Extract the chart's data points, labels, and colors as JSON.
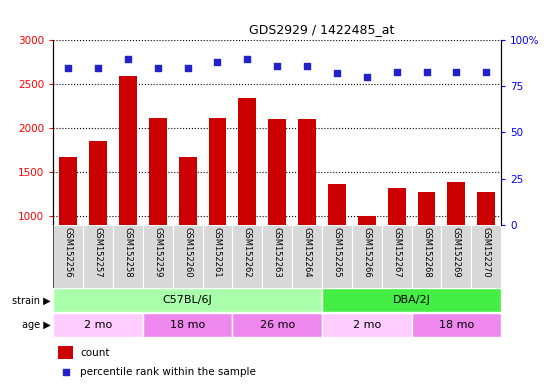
{
  "title": "GDS2929 / 1422485_at",
  "samples": [
    "GSM152256",
    "GSM152257",
    "GSM152258",
    "GSM152259",
    "GSM152260",
    "GSM152261",
    "GSM152262",
    "GSM152263",
    "GSM152264",
    "GSM152265",
    "GSM152266",
    "GSM152267",
    "GSM152268",
    "GSM152269",
    "GSM152270"
  ],
  "counts": [
    1670,
    1850,
    2590,
    2110,
    1670,
    2110,
    2340,
    2100,
    2100,
    1360,
    1000,
    1320,
    1270,
    1390,
    1270
  ],
  "percentiles": [
    85,
    85,
    90,
    85,
    85,
    88,
    90,
    86,
    86,
    82,
    80,
    83,
    83,
    83,
    83
  ],
  "bar_color": "#cc0000",
  "dot_color": "#2222cc",
  "ylim_left": [
    900,
    3000
  ],
  "ylim_right": [
    0,
    100
  ],
  "yticks_left": [
    1000,
    1500,
    2000,
    2500,
    3000
  ],
  "yticks_right": [
    0,
    25,
    50,
    75,
    100
  ],
  "strain_labels": [
    {
      "label": "C57BL/6J",
      "start": 0,
      "end": 9,
      "color": "#aaffaa"
    },
    {
      "label": "DBA/2J",
      "start": 9,
      "end": 15,
      "color": "#44ee44"
    }
  ],
  "age_labels": [
    {
      "label": "2 mo",
      "start": 0,
      "end": 3,
      "color": "#ffccff"
    },
    {
      "label": "18 mo",
      "start": 3,
      "end": 6,
      "color": "#ee88ee"
    },
    {
      "label": "26 mo",
      "start": 6,
      "end": 9,
      "color": "#ee88ee"
    },
    {
      "label": "2 mo",
      "start": 9,
      "end": 12,
      "color": "#ffccff"
    },
    {
      "label": "18 mo",
      "start": 12,
      "end": 15,
      "color": "#ee88ee"
    }
  ],
  "legend_count_color": "#cc0000",
  "legend_dot_color": "#2222cc",
  "cell_bg": "#d8d8d8",
  "plot_bg": "#ffffff",
  "fig_width": 5.6,
  "fig_height": 3.84,
  "dpi": 100
}
